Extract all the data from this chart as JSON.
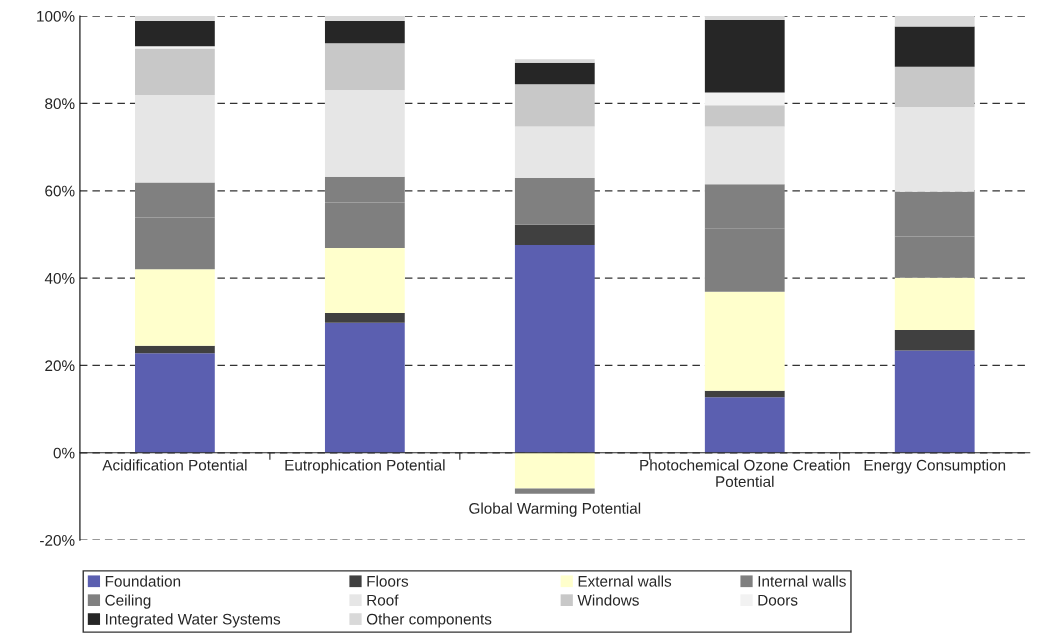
{
  "chart_data": {
    "type": "bar",
    "stacked": true,
    "categories": [
      "Acidification Potential",
      "Eutrophication Potential",
      "Global Warming Potential",
      "Photochemical Ozone Creation Potential",
      "Energy Consumption"
    ],
    "series": [
      {
        "name": "Foundation",
        "color": "#5b5fb0",
        "values": [
          22.8,
          29.8,
          47.6,
          12.7,
          23.4
        ]
      },
      {
        "name": "Floors",
        "color": "#404040",
        "values": [
          1.7,
          2.2,
          4.6,
          1.5,
          4.7
        ]
      },
      {
        "name": "External walls",
        "color": "#ffffcc",
        "values": [
          17.5,
          14.9,
          -8.2,
          22.7,
          12.0
        ]
      },
      {
        "name": "Internal walls",
        "color": "#7f7f7f",
        "values": [
          11.9,
          10.4,
          -1.2,
          14.5,
          9.4
        ]
      },
      {
        "name": "Ceiling",
        "color": "#808080",
        "values": [
          8.0,
          5.9,
          10.7,
          10.1,
          10.3
        ]
      },
      {
        "name": "Roof",
        "color": "#e6e6e6",
        "values": [
          20.0,
          19.9,
          11.8,
          13.2,
          19.4
        ]
      },
      {
        "name": "Windows",
        "color": "#c8c8c8",
        "values": [
          10.7,
          10.7,
          9.7,
          4.9,
          9.2
        ]
      },
      {
        "name": "Doors",
        "color": "#f2f2f2",
        "values": [
          0.5,
          0,
          0,
          2.9,
          0
        ]
      },
      {
        "name": "Integrated Water Systems",
        "color": "#262626",
        "values": [
          5.8,
          5.1,
          4.9,
          16.6,
          9.2
        ]
      },
      {
        "name": "Other components",
        "color": "#d9d9d9",
        "values": [
          1.1,
          1.1,
          0.8,
          0.9,
          2.4
        ]
      }
    ],
    "ylim": [
      -20,
      100
    ],
    "yticks": [
      {
        "value": -20,
        "label": "-20%"
      },
      {
        "value": 0,
        "label": "0%"
      },
      {
        "value": 20,
        "label": "20%"
      },
      {
        "value": 40,
        "label": "40%"
      },
      {
        "value": 60,
        "label": "60%"
      },
      {
        "value": 80,
        "label": "80%"
      },
      {
        "value": 100,
        "label": "100%"
      }
    ],
    "grid": "y",
    "legend": "bottom"
  }
}
